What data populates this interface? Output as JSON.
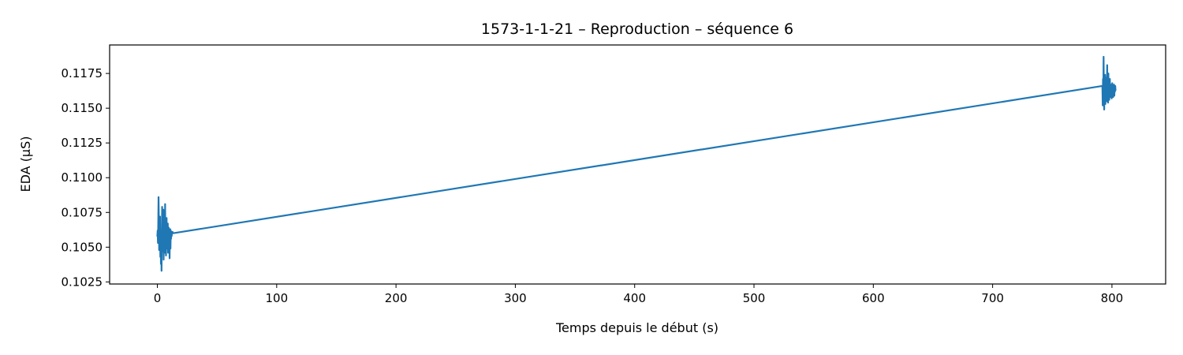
{
  "chart_data": {
    "type": "line",
    "title": "1573-1-1-21 – Reproduction – séquence 6",
    "xlabel": "Temps depuis le début (s)",
    "ylabel": "EDA (µS)",
    "xlim": [
      -40,
      845
    ],
    "ylim": [
      0.10235,
      0.11955
    ],
    "x_ticks": [
      0,
      100,
      200,
      300,
      400,
      500,
      600,
      700,
      800
    ],
    "y_ticks": [
      0.1025,
      0.105,
      0.1075,
      0.11,
      0.1125,
      0.115,
      0.1175
    ],
    "x_tick_labels": [
      "0",
      "100",
      "200",
      "300",
      "400",
      "500",
      "600",
      "700",
      "800"
    ],
    "y_tick_labels": [
      "0.1025",
      "0.1050",
      "0.1075",
      "0.1100",
      "0.1125",
      "0.1150",
      "0.1175"
    ],
    "grid": false,
    "legend": "none",
    "series": [
      {
        "color": "#1f77b4",
        "x": [
          0.0,
          0.25,
          0.5,
          0.75,
          1.0,
          1.25,
          1.5,
          1.75,
          2.0,
          2.25,
          2.5,
          2.75,
          3.0,
          3.25,
          3.5,
          3.75,
          4.0,
          4.25,
          4.5,
          4.75,
          5.0,
          5.25,
          5.5,
          5.75,
          6.0,
          6.25,
          6.5,
          6.75,
          7.0,
          7.25,
          7.5,
          7.75,
          8.0,
          8.25,
          8.5,
          8.75,
          9.0,
          9.25,
          9.5,
          9.75,
          10.0,
          10.25,
          10.5,
          10.75,
          11.0,
          11.25,
          11.5,
          11.75,
          12.0,
          12.25,
          12.5,
          12.75,
          13.0,
          792.0,
          792.25,
          792.5,
          792.75,
          793.0,
          793.25,
          793.5,
          793.75,
          794.0,
          794.25,
          794.5,
          794.75,
          795.0,
          795.25,
          795.5,
          795.75,
          796.0,
          796.25,
          796.5,
          796.75,
          797.0,
          797.25,
          797.5,
          797.75,
          798.0,
          798.25,
          798.5,
          798.75,
          799.0,
          799.25,
          799.5,
          799.75,
          800.0,
          800.25,
          800.5,
          800.75,
          801.0,
          801.25,
          801.5,
          801.75,
          802.0,
          802.25,
          802.5,
          802.75,
          803.0
        ],
        "y": [
          0.1058,
          0.1062,
          0.1053,
          0.1066,
          0.1086,
          0.1071,
          0.1048,
          0.1064,
          0.1055,
          0.1072,
          0.1043,
          0.1061,
          0.1038,
          0.1056,
          0.1033,
          0.1058,
          0.1079,
          0.1047,
          0.1066,
          0.1052,
          0.1077,
          0.1041,
          0.106,
          0.1051,
          0.1069,
          0.1046,
          0.1081,
          0.1054,
          0.1063,
          0.1044,
          0.1059,
          0.1071,
          0.1049,
          0.1062,
          0.1055,
          0.1067,
          0.1046,
          0.1058,
          0.1064,
          0.1051,
          0.1061,
          0.1042,
          0.1057,
          0.1063,
          0.1049,
          0.1062,
          0.1056,
          0.106,
          0.1058,
          0.1061,
          0.106,
          0.1061,
          0.106,
          0.1166,
          0.1152,
          0.1171,
          0.1158,
          0.1187,
          0.1162,
          0.1149,
          0.1169,
          0.1157,
          0.1174,
          0.1153,
          0.1165,
          0.1159,
          0.1172,
          0.1155,
          0.1163,
          0.1181,
          0.1158,
          0.1166,
          0.1154,
          0.1175,
          0.116,
          0.1168,
          0.1156,
          0.1164,
          0.1171,
          0.1158,
          0.1162,
          0.1167,
          0.1159,
          0.1165,
          0.1157,
          0.1163,
          0.1168,
          0.116,
          0.1164,
          0.1158,
          0.1166,
          0.1161,
          0.1167,
          0.1159,
          0.1165,
          0.1162,
          0.1166,
          0.1163
        ]
      }
    ]
  }
}
